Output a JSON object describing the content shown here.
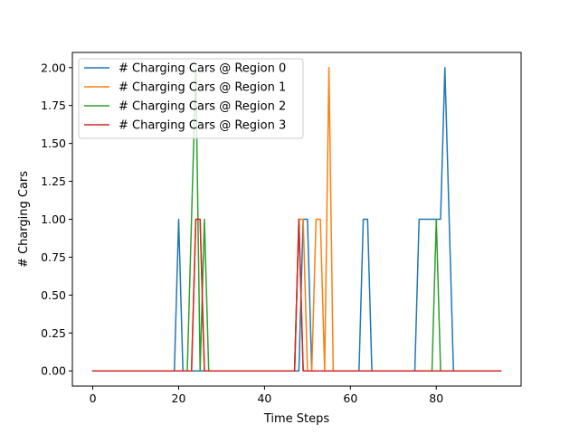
{
  "chart_data": {
    "type": "line",
    "xlabel": "Time Steps",
    "ylabel": "# Charging Cars",
    "xlim": [
      -4.75,
      99.75
    ],
    "ylim": [
      -0.1,
      2.1
    ],
    "xticks": [
      0,
      20,
      40,
      60,
      80
    ],
    "yticks": [
      0.0,
      0.25,
      0.5,
      0.75,
      1.0,
      1.25,
      1.5,
      1.75,
      2.0
    ],
    "ytick_labels": [
      "0.00",
      "0.25",
      "0.50",
      "0.75",
      "1.00",
      "1.25",
      "1.50",
      "1.75",
      "2.00"
    ],
    "grid": false,
    "legend_position": "top-left",
    "series": [
      {
        "name": "# Charging Cars @ Region 0",
        "color": "#1f77b4",
        "x": [
          0,
          19,
          20,
          21,
          48,
          49,
          50,
          51,
          62,
          63,
          64,
          65,
          75,
          76,
          80,
          81,
          82,
          83,
          84,
          95
        ],
        "y": [
          0,
          0,
          1,
          0,
          0,
          1,
          1,
          0,
          0,
          1,
          1,
          0,
          0,
          1,
          1,
          1,
          2,
          1,
          0,
          0
        ]
      },
      {
        "name": "# Charging Cars @ Region 1",
        "color": "#ff7f0e",
        "x": [
          0,
          23,
          24,
          25,
          26,
          47,
          48,
          49,
          50,
          51,
          52,
          53,
          54,
          55,
          56,
          95
        ],
        "y": [
          0,
          0,
          1,
          1,
          0,
          0,
          1,
          1,
          0,
          0,
          1,
          1,
          0,
          2,
          0,
          0
        ]
      },
      {
        "name": "# Charging Cars @ Region 2",
        "color": "#2ca02c",
        "x": [
          0,
          22,
          23,
          24,
          25,
          26,
          27,
          47,
          48,
          49,
          79,
          80,
          81,
          95
        ],
        "y": [
          0,
          0,
          1,
          2,
          0,
          1,
          0,
          0,
          1,
          0,
          0,
          1,
          0,
          0
        ]
      },
      {
        "name": "# Charging Cars @ Region 3",
        "color": "#d62728",
        "x": [
          0,
          23,
          24,
          25,
          26,
          47,
          48,
          49,
          95
        ],
        "y": [
          0,
          0,
          1,
          1,
          0,
          0,
          1,
          0,
          0
        ]
      }
    ]
  }
}
